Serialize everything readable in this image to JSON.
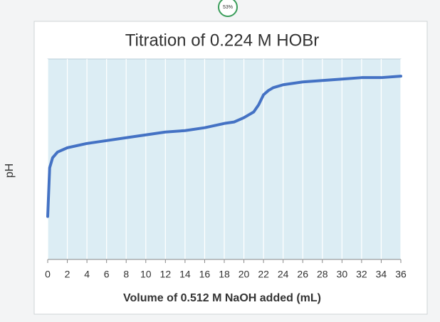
{
  "chart_data": {
    "type": "line",
    "title": "Titration of 0.224 M HOBr",
    "x_label": "Volume of 0.512 M NaOH added (mL)",
    "y_label": "pH",
    "series": [
      {
        "name": "pH",
        "color": "#4472c4",
        "x": [
          0,
          0.2,
          0.5,
          1,
          2,
          4,
          6,
          8,
          10,
          12,
          14,
          16,
          18,
          19,
          20,
          21,
          21.5,
          22,
          22.5,
          23,
          24,
          26,
          28,
          30,
          32,
          34,
          36
        ],
        "values": [
          3.0,
          6.4,
          7.1,
          7.5,
          7.8,
          8.1,
          8.3,
          8.5,
          8.7,
          8.9,
          9.0,
          9.2,
          9.5,
          9.6,
          9.9,
          10.3,
          10.8,
          11.5,
          11.8,
          12.0,
          12.2,
          12.4,
          12.5,
          12.6,
          12.7,
          12.7,
          12.8
        ]
      }
    ],
    "xlim": [
      0,
      36
    ],
    "xticks": [
      0,
      2,
      4,
      6,
      8,
      10,
      12,
      14,
      16,
      18,
      20,
      22,
      24,
      26,
      28,
      30,
      32,
      34,
      36
    ],
    "ylim": [
      0,
      14
    ],
    "grid": true
  },
  "overlay": {
    "progress_label": "53%"
  }
}
